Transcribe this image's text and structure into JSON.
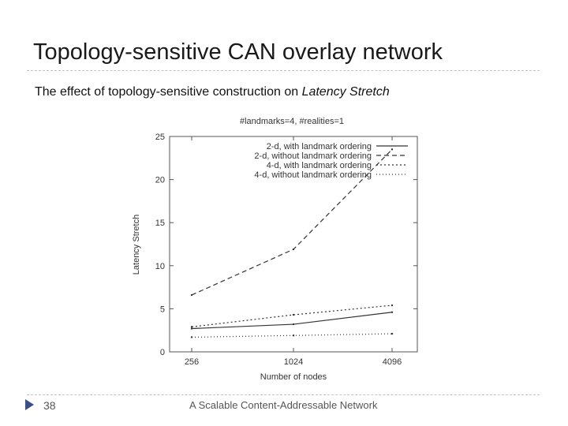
{
  "slide": {
    "title": "Topology-sensitive CAN overlay network",
    "subtitle_prefix": "The effect of topology-sensitive construction on ",
    "subtitle_emphasis": "Latency Stretch"
  },
  "footer": {
    "page_number": "38",
    "text": "A Scalable Content-Addressable Network"
  },
  "colors": {
    "accent": "#3a4f87",
    "line": "#333333"
  },
  "chart_data": {
    "type": "line",
    "title": "#landmarks=4, #realities=1",
    "xlabel": "Number of nodes",
    "ylabel": "Latency Stretch",
    "categories": [
      "256",
      "1024",
      "4096"
    ],
    "ylim": [
      0,
      25
    ],
    "yticks": [
      "0",
      "5",
      "10",
      "15",
      "20",
      "25"
    ],
    "legend_position": "top-right",
    "grid": false,
    "series": [
      {
        "name": "2-d, with landmark ordering",
        "values": [
          2.7,
          3.2,
          4.6
        ],
        "dash": ""
      },
      {
        "name": "2-d, without landmark ordering",
        "values": [
          6.6,
          11.9,
          23.5
        ],
        "dash": "6 4"
      },
      {
        "name": "4-d, with landmark ordering",
        "values": [
          2.9,
          4.3,
          5.4
        ],
        "dash": "2 3"
      },
      {
        "name": "4-d, without landmark ordering",
        "values": [
          1.7,
          1.9,
          2.1
        ],
        "dash": "1 3"
      }
    ]
  }
}
